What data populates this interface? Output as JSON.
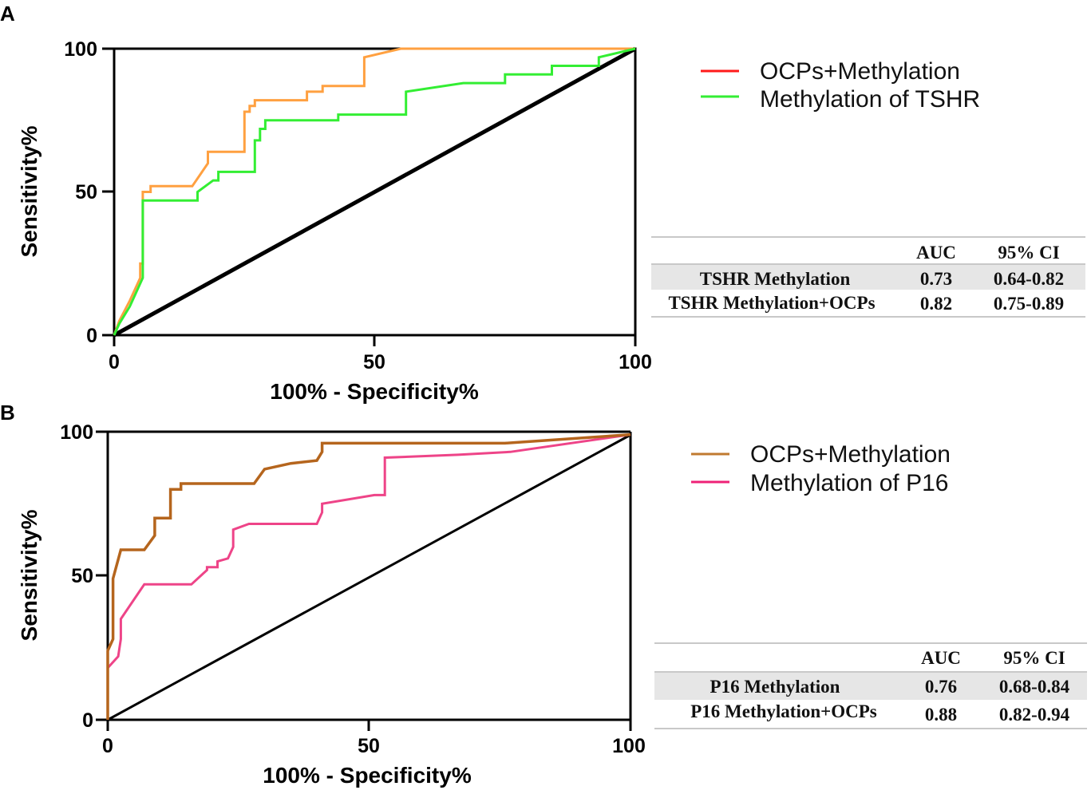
{
  "chart_data": [
    {
      "panel": "A",
      "type": "line",
      "xlabel": "100% - Specificity%",
      "ylabel": "Sensitivity%",
      "xlim": [
        0,
        100
      ],
      "ylim": [
        0,
        100
      ],
      "xticks": [
        "0",
        "50",
        "100"
      ],
      "yticks": [
        "0",
        "50",
        "100"
      ],
      "legend": [
        {
          "label": "OCPs+Methylation",
          "color": "#ff1a1a"
        },
        {
          "label": "Methylation of TSHR",
          "color": "#33ee33"
        }
      ],
      "reference_line": {
        "x": [
          0,
          100
        ],
        "y": [
          0,
          100
        ],
        "color": "#000000"
      },
      "series": [
        {
          "name": "OCPs+Methylation",
          "color": "#ffa040",
          "x": [
            0,
            1,
            3,
            5,
            5,
            5.5,
            5.5,
            7,
            7,
            15,
            18,
            18,
            25,
            25,
            26,
            26,
            27,
            27,
            37,
            37,
            40,
            40,
            48,
            48,
            55,
            60,
            100
          ],
          "y": [
            0,
            5,
            12,
            20,
            25,
            25,
            50,
            50,
            52,
            52,
            60,
            64,
            64,
            78,
            78,
            80,
            80,
            82,
            82,
            85,
            85,
            87,
            87,
            97,
            100,
            100,
            100
          ]
        },
        {
          "name": "Methylation of TSHR",
          "color": "#33ee33",
          "x": [
            0,
            1,
            3,
            5.5,
            5.5,
            16,
            16,
            19,
            20,
            20,
            27,
            27,
            28,
            28,
            29,
            29,
            43,
            43,
            56,
            56,
            67,
            75,
            75,
            84,
            84,
            93,
            93,
            100
          ],
          "y": [
            0,
            4,
            10,
            20,
            47,
            47,
            50,
            54,
            54,
            57,
            57,
            68,
            68,
            72,
            72,
            75,
            75,
            77,
            77,
            85,
            88,
            88,
            91,
            91,
            94,
            94,
            97,
            100
          ]
        }
      ],
      "table": {
        "columns": [
          "AUC",
          "95% CI"
        ],
        "rows": [
          {
            "label": "TSHR Methylation",
            "auc": "0.73",
            "ci": "0.64-0.82"
          },
          {
            "label": "TSHR Methylation+OCPs",
            "auc": "0.82",
            "ci": "0.75-0.89"
          }
        ]
      }
    },
    {
      "panel": "B",
      "type": "line",
      "xlabel": "100% - Specificity%",
      "ylabel": "Sensitivity%",
      "xlim": [
        0,
        100
      ],
      "ylim": [
        0,
        100
      ],
      "xticks": [
        "0",
        "50",
        "100"
      ],
      "yticks": [
        "0",
        "50",
        "100"
      ],
      "legend": [
        {
          "label": "OCPs+Methylation",
          "color": "#c07a30"
        },
        {
          "label": "Methylation of P16",
          "color": "#ee2277"
        }
      ],
      "reference_line": {
        "x": [
          0,
          100
        ],
        "y": [
          0,
          100
        ],
        "color": "#000000"
      },
      "series": [
        {
          "name": "OCPs+Methylation",
          "color": "#b5651d",
          "x": [
            0,
            0,
            1,
            1,
            2.5,
            2.5,
            7,
            9,
            9,
            11,
            12,
            12,
            14,
            14,
            28,
            30,
            30,
            35,
            40,
            41,
            41,
            60,
            76,
            100
          ],
          "y": [
            0,
            24,
            28,
            49,
            59,
            59,
            59,
            64,
            70,
            70,
            70,
            80,
            80,
            82,
            82,
            87,
            87,
            89,
            90,
            93,
            96,
            96,
            96,
            99
          ]
        },
        {
          "name": "Methylation of P16",
          "color": "#ee4488",
          "x": [
            0,
            0,
            2,
            2.5,
            2.5,
            7,
            16,
            19,
            19,
            21,
            21,
            23,
            24,
            24,
            27,
            40,
            41,
            41,
            51,
            53,
            53,
            67,
            77,
            100
          ],
          "y": [
            0,
            18,
            22,
            28,
            35,
            47,
            47,
            52,
            53,
            53,
            55,
            56,
            60,
            66,
            68,
            68,
            72,
            75,
            78,
            78,
            91,
            92,
            93,
            99
          ]
        }
      ],
      "table": {
        "columns": [
          "AUC",
          "95% CI"
        ],
        "rows": [
          {
            "label": "P16 Methylation",
            "auc": "0.76",
            "ci": "0.68-0.84"
          },
          {
            "label": "P16 Methylation+OCPs",
            "auc": "0.88",
            "ci": "0.82-0.94"
          }
        ]
      }
    }
  ]
}
